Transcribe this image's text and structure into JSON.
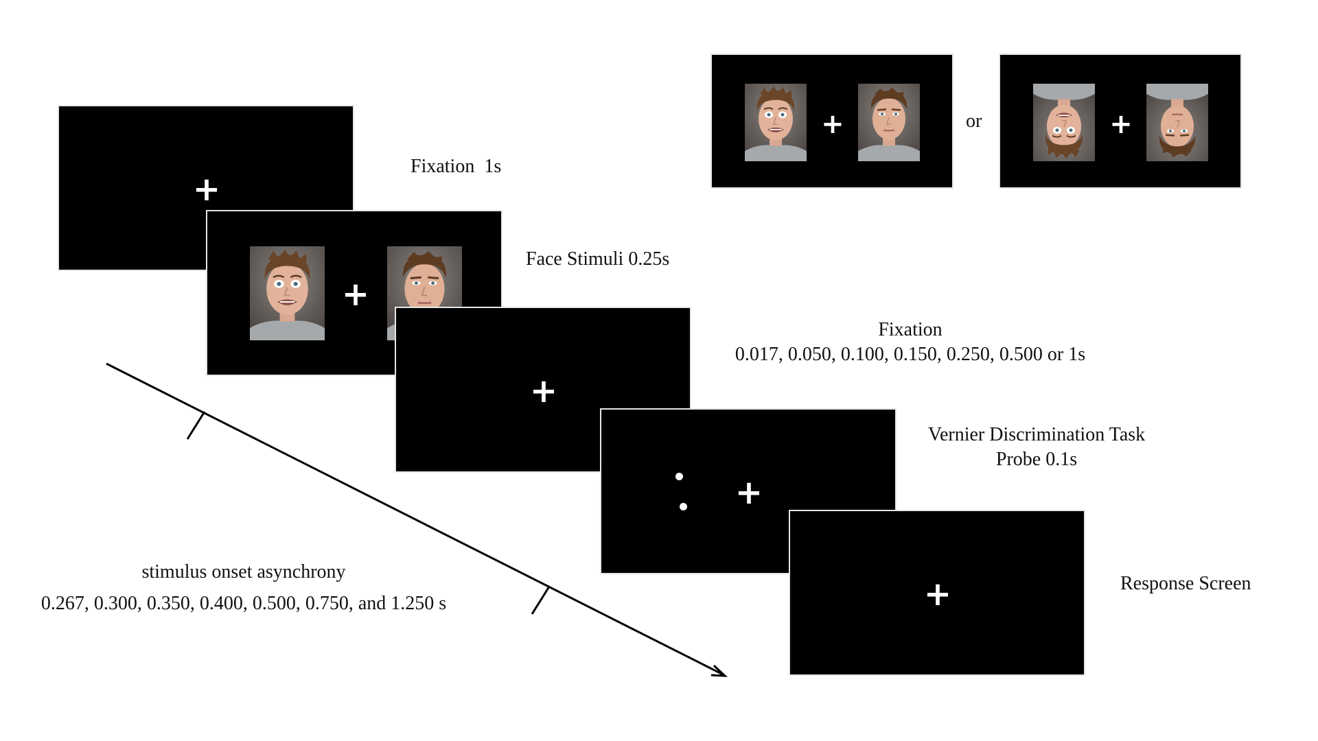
{
  "example_panels": {
    "or_label": "or",
    "fixation_symbol": "+"
  },
  "trial": {
    "fixation": {
      "label": "Fixation  1s",
      "symbol": "+"
    },
    "face_stimuli": {
      "label": "Face Stimuli 0.25s",
      "symbol": "+"
    },
    "isi": {
      "label": "Fixation",
      "durations": "0.017, 0.050, 0.100, 0.150, 0.250, 0.500 or 1s",
      "symbol": "+"
    },
    "vernier": {
      "label": "Vernier Discrimination Task",
      "sublabel": "Probe 0.1s",
      "symbol": "+"
    },
    "response": {
      "label": "Response Screen",
      "symbol": "+"
    }
  },
  "soa": {
    "label": "stimulus onset asynchrony",
    "values": "0.267, 0.300, 0.350, 0.400, 0.500, 0.750, and 1.250 s"
  },
  "colors": {
    "screen": "#000000",
    "symbol": "#ffffff",
    "text": "#111111"
  }
}
